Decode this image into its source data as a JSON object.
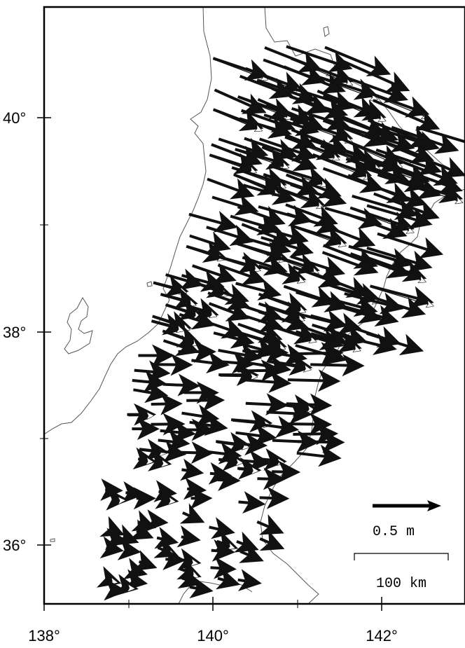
{
  "map": {
    "extent": {
      "lon": [
        138.0,
        143.0
      ],
      "lat": [
        35.5,
        41.0
      ]
    },
    "x_ticks": [
      {
        "value": 138,
        "label": "138°"
      },
      {
        "value": 140,
        "label": "140°"
      },
      {
        "value": 142,
        "label": "142°"
      }
    ],
    "y_ticks": [
      {
        "value": 40,
        "label": "40°"
      },
      {
        "value": 38,
        "label": "38°"
      },
      {
        "value": 36,
        "label": "36°"
      }
    ],
    "legend": {
      "vector_label": "0.5 m",
      "distance_label": "100 km"
    },
    "colors": {
      "coast": "#555555",
      "arrow": "#111111",
      "frame": "#000000"
    }
  }
}
